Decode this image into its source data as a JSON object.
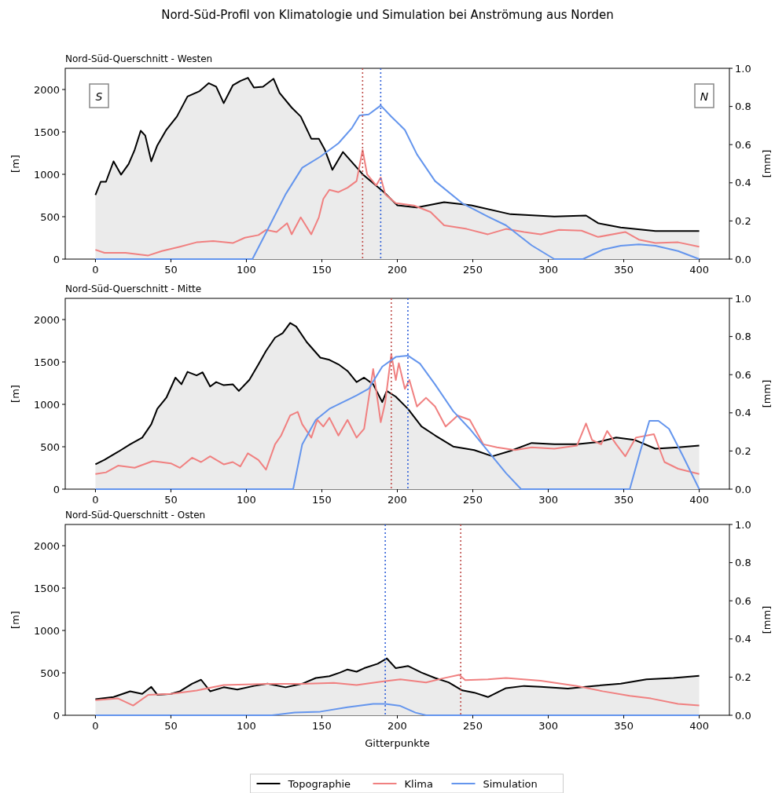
{
  "chart_data": [
    {
      "type": "line",
      "title": "Nord-Süd-Profil von Klimatologie und Simulation bei Anströmung aus Norden",
      "subtitle": "Nord-Süd-Querschnitt - Westen",
      "ylabel": "[m]",
      "y2label": "[mm]",
      "xlim": [
        -20,
        420
      ],
      "xticks": [
        0,
        50,
        100,
        150,
        200,
        250,
        300,
        350,
        400
      ],
      "ylim": [
        0,
        2250
      ],
      "yticks": [
        0,
        500,
        1000,
        1500,
        2000
      ],
      "y2lim": [
        0,
        1
      ],
      "y2ticks": [
        {
          "value": 0,
          "label": "0.0"
        },
        {
          "value": 0.2,
          "label": "0.2"
        },
        {
          "value": 0.4,
          "label": "0.4"
        },
        {
          "value": 0.6,
          "label": "0.6"
        },
        {
          "value": 0.8,
          "label": "0.8"
        },
        {
          "value": 1,
          "label": "1.0"
        }
      ],
      "grid": false,
      "legend": false,
      "annotations": [
        "S",
        "N"
      ],
      "ref_lines": [
        {
          "axis": "x",
          "value": 177,
          "color": "#c0504d",
          "line_style": "dotted"
        },
        {
          "axis": "x",
          "value": 189,
          "color": "#3060d8",
          "line_style": "dotted"
        }
      ],
      "series": [
        {
          "type": "area",
          "color": "#000000",
          "x": [
            0,
            3.5,
            7,
            12,
            17,
            22,
            26,
            30,
            33,
            37,
            41,
            47,
            54,
            61,
            69,
            75,
            80,
            85,
            91,
            96,
            101,
            105,
            111,
            118,
            122,
            130,
            136,
            143,
            148,
            152,
            157,
            164,
            170,
            177,
            184,
            191,
            200,
            213,
            231,
            249,
            275,
            304,
            325,
            333,
            348,
            371,
            400
          ],
          "values": [
            755,
            912,
            912,
            1153,
            996,
            1121,
            1289,
            1514,
            1457,
            1153,
            1341,
            1525,
            1682,
            1918,
            1981,
            2075,
            2033,
            1839,
            2049,
            2101,
            2138,
            2023,
            2033,
            2127,
            1960,
            1787,
            1682,
            1420,
            1420,
            1289,
            1053,
            1263,
            1142,
            1001,
            896,
            791,
            634,
            608,
            671,
            634,
            529,
            503,
            514,
            424,
            372,
            330,
            330
          ]
        },
        {
          "axis": "y2",
          "color": "#f08080",
          "x": [
            0,
            6,
            20,
            35,
            44,
            56,
            67,
            78,
            91,
            99,
            108,
            113,
            120,
            127,
            130,
            136,
            143,
            148,
            151,
            155,
            161,
            167,
            173,
            177,
            180,
            186,
            189,
            192,
            199,
            211,
            222,
            231,
            246,
            260,
            272,
            284,
            295,
            307,
            322,
            333,
            351,
            360,
            371,
            386,
            400
          ],
          "values": [
            0.049,
            0.033,
            0.033,
            0.019,
            0.042,
            0.065,
            0.088,
            0.095,
            0.084,
            0.112,
            0.126,
            0.153,
            0.142,
            0.188,
            0.13,
            0.219,
            0.13,
            0.219,
            0.316,
            0.363,
            0.351,
            0.374,
            0.409,
            0.572,
            0.444,
            0.386,
            0.428,
            0.34,
            0.293,
            0.281,
            0.247,
            0.177,
            0.158,
            0.13,
            0.158,
            0.142,
            0.13,
            0.153,
            0.149,
            0.116,
            0.142,
            0.102,
            0.084,
            0.088,
            0.065
          ]
        },
        {
          "axis": "y2",
          "color": "#6495ed",
          "x": [
            0,
            104,
            114,
            126,
            137,
            149,
            161,
            170,
            175,
            181,
            189,
            196,
            205,
            213,
            225,
            243,
            260,
            272,
            289,
            304,
            323,
            336,
            348,
            360,
            371,
            386,
            400
          ],
          "values": [
            0,
            0,
            0.153,
            0.34,
            0.479,
            0.537,
            0.607,
            0.688,
            0.753,
            0.758,
            0.805,
            0.747,
            0.677,
            0.549,
            0.409,
            0.293,
            0.223,
            0.177,
            0.072,
            0,
            0,
            0.049,
            0.07,
            0.077,
            0.07,
            0.042,
            0
          ]
        }
      ]
    },
    {
      "type": "line",
      "subtitle": "Nord-Süd-Querschnitt - Mitte",
      "ylabel": "[m]",
      "y2label": "[mm]",
      "xlim": [
        -20,
        420
      ],
      "xticks": [
        0,
        50,
        100,
        150,
        200,
        250,
        300,
        350,
        400
      ],
      "ylim": [
        0,
        2250
      ],
      "yticks": [
        0,
        500,
        1000,
        1500,
        2000
      ],
      "y2lim": [
        0,
        1
      ],
      "y2ticks": [
        {
          "value": 0,
          "label": "0.0"
        },
        {
          "value": 0.2,
          "label": "0.2"
        },
        {
          "value": 0.4,
          "label": "0.4"
        },
        {
          "value": 0.6,
          "label": "0.6"
        },
        {
          "value": 0.8,
          "label": "0.8"
        },
        {
          "value": 1,
          "label": "1.0"
        }
      ],
      "grid": false,
      "legend": false,
      "ref_lines": [
        {
          "axis": "x",
          "value": 196,
          "color": "#c0504d",
          "line_style": "dotted"
        },
        {
          "axis": "x",
          "value": 207,
          "color": "#3060d8",
          "line_style": "dotted"
        }
      ],
      "series": [
        {
          "type": "area",
          "color": "#000000",
          "x": [
            0,
            6,
            15,
            23,
            31,
            37,
            41,
            47,
            53,
            57,
            61,
            67,
            71,
            76,
            80,
            85,
            91,
            95,
            102,
            108,
            113,
            119,
            124,
            129,
            133,
            140,
            149,
            155,
            161,
            167,
            173,
            178,
            184,
            190,
            193,
            199,
            207,
            216,
            225,
            237,
            251,
            263,
            275,
            289,
            304,
            319,
            333,
            345,
            357,
            371,
            386,
            400
          ],
          "values": [
            293,
            346,
            440,
            529,
            608,
            765,
            948,
            1079,
            1315,
            1237,
            1383,
            1341,
            1378,
            1210,
            1263,
            1226,
            1237,
            1158,
            1289,
            1472,
            1630,
            1787,
            1839,
            1960,
            1918,
            1734,
            1551,
            1525,
            1472,
            1394,
            1263,
            1315,
            1237,
            1027,
            1158,
            1090,
            948,
            739,
            634,
            503,
            461,
            388,
            451,
            545,
            529,
            529,
            555,
            608,
            582,
            477,
            493,
            514
          ]
        },
        {
          "axis": "y2",
          "color": "#f08080",
          "x": [
            0,
            7,
            15,
            26,
            38,
            50,
            56,
            64,
            70,
            76,
            85,
            91,
            96,
            101,
            108,
            113,
            119,
            123,
            129,
            134,
            137,
            143,
            147,
            151,
            155,
            161,
            167,
            173,
            178,
            184,
            189,
            192,
            196,
            199,
            201,
            205,
            208,
            213,
            219,
            225,
            232,
            240,
            248,
            257,
            266,
            278,
            289,
            304,
            319,
            325,
            329,
            335,
            339,
            345,
            351,
            358,
            370,
            377,
            386,
            400
          ],
          "values": [
            0.079,
            0.088,
            0.123,
            0.112,
            0.147,
            0.135,
            0.112,
            0.165,
            0.142,
            0.172,
            0.13,
            0.142,
            0.119,
            0.188,
            0.153,
            0.102,
            0.235,
            0.281,
            0.386,
            0.405,
            0.34,
            0.27,
            0.363,
            0.328,
            0.374,
            0.281,
            0.363,
            0.27,
            0.316,
            0.63,
            0.351,
            0.456,
            0.707,
            0.572,
            0.66,
            0.526,
            0.572,
            0.433,
            0.479,
            0.433,
            0.328,
            0.386,
            0.363,
            0.235,
            0.219,
            0.205,
            0.219,
            0.212,
            0.228,
            0.344,
            0.258,
            0.235,
            0.305,
            0.235,
            0.172,
            0.27,
            0.288,
            0.142,
            0.107,
            0.079
          ]
        },
        {
          "axis": "y2",
          "color": "#6495ed",
          "x": [
            0,
            131,
            137,
            146,
            155,
            164,
            173,
            181,
            190,
            199,
            207,
            215,
            225,
            237,
            248,
            260,
            272,
            282,
            354,
            361,
            367,
            373,
            380,
            389,
            400
          ],
          "values": [
            0,
            0,
            0.235,
            0.363,
            0.421,
            0.456,
            0.491,
            0.526,
            0.642,
            0.693,
            0.7,
            0.658,
            0.549,
            0.409,
            0.316,
            0.2,
            0.084,
            0,
            0,
            0.2,
            0.358,
            0.358,
            0.316,
            0.177,
            0
          ]
        }
      ]
    },
    {
      "type": "line",
      "subtitle": "Nord-Süd-Querschnitt - Osten",
      "xlabel": "Gitterpunkte",
      "ylabel": "[m]",
      "y2label": "[mm]",
      "xlim": [
        -20,
        420
      ],
      "xticks": [
        0,
        50,
        100,
        150,
        200,
        250,
        300,
        350,
        400
      ],
      "ylim": [
        0,
        2250
      ],
      "yticks": [
        0,
        500,
        1000,
        1500,
        2000
      ],
      "y2lim": [
        0,
        1
      ],
      "y2ticks": [
        {
          "value": 0,
          "label": "0.0"
        },
        {
          "value": 0.2,
          "label": "0.2"
        },
        {
          "value": 0.4,
          "label": "0.4"
        },
        {
          "value": 0.6,
          "label": "0.6"
        },
        {
          "value": 0.8,
          "label": "0.8"
        },
        {
          "value": 1,
          "label": "1.0"
        }
      ],
      "grid": false,
      "legend": "bottom",
      "ref_lines": [
        {
          "axis": "x",
          "value": 192,
          "color": "#3060d8",
          "line_style": "dotted"
        },
        {
          "axis": "x",
          "value": 242,
          "color": "#c0504d",
          "line_style": "dotted"
        }
      ],
      "series": [
        {
          "type": "area",
          "name": "Topographie",
          "color": "#000000",
          "x": [
            0,
            12,
            23,
            31,
            37,
            41,
            50,
            56,
            64,
            70,
            76,
            85,
            94,
            105,
            114,
            126,
            137,
            146,
            155,
            162,
            167,
            173,
            178,
            187,
            193,
            199,
            207,
            216,
            225,
            234,
            243,
            251,
            260,
            272,
            284,
            295,
            313,
            330,
            348,
            365,
            383,
            400
          ],
          "values": [
            189,
            215,
            283,
            252,
            335,
            241,
            252,
            283,
            372,
            419,
            283,
            330,
            304,
            346,
            372,
            330,
            372,
            440,
            461,
            503,
            540,
            514,
            555,
            608,
            671,
            555,
            582,
            503,
            440,
            388,
            293,
            267,
            215,
            320,
            346,
            335,
            314,
            346,
            372,
            424,
            440,
            466
          ]
        },
        {
          "axis": "y2",
          "name": "Klima",
          "color": "#f08080",
          "x": [
            0,
            15,
            25,
            35,
            50,
            67,
            85,
            114,
            137,
            158,
            173,
            190,
            202,
            219,
            231,
            241,
            245,
            260,
            272,
            295,
            319,
            336,
            354,
            368,
            386,
            400
          ],
          "values": [
            0.079,
            0.088,
            0.051,
            0.107,
            0.112,
            0.13,
            0.158,
            0.165,
            0.165,
            0.17,
            0.158,
            0.177,
            0.188,
            0.172,
            0.195,
            0.212,
            0.184,
            0.188,
            0.195,
            0.181,
            0.153,
            0.126,
            0.102,
            0.088,
            0.06,
            0.051
          ]
        },
        {
          "axis": "y2",
          "name": "Simulation",
          "color": "#6495ed",
          "x": [
            0,
            117,
            132,
            149,
            167,
            184,
            192,
            202,
            212,
            219,
            400
          ],
          "values": [
            0,
            0,
            0.014,
            0.019,
            0.042,
            0.06,
            0.06,
            0.049,
            0.014,
            0,
            0
          ]
        }
      ]
    }
  ]
}
